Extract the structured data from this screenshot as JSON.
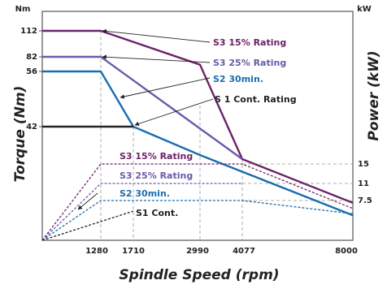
{
  "chart_data": {
    "type": "line",
    "x_label": "Spindle Speed (rpm)",
    "y_left_label": "Torque (Nm)",
    "y_right_label": "Power (kW)",
    "y_left_unit": "Nm",
    "y_right_unit": "kW",
    "x_ticks": [
      "1280",
      "1710",
      "2990",
      "4077",
      "8000"
    ],
    "y_left_ticks": [
      "112",
      "82",
      "56",
      "42"
    ],
    "y_right_ticks": [
      "15",
      "11",
      "7.5"
    ],
    "torque_series": [
      {
        "name": "S3 15% Rating",
        "color": "#6b2367",
        "points": [
          [
            0,
            112
          ],
          [
            1280,
            112
          ],
          [
            2990,
            68
          ],
          [
            4077,
            26
          ],
          [
            8000,
            12
          ]
        ]
      },
      {
        "name": "S3 25% Rating",
        "color": "#6a5aab",
        "points": [
          [
            0,
            82
          ],
          [
            1280,
            82
          ],
          [
            4077,
            26
          ]
        ]
      },
      {
        "name": "S2 30min.",
        "color": "#1a6cb0",
        "points": [
          [
            0,
            56
          ],
          [
            1280,
            56
          ],
          [
            1710,
            42
          ],
          [
            2990,
            28
          ],
          [
            8000,
            8
          ]
        ]
      },
      {
        "name": "S1 Cont. Rating",
        "color": "#222222",
        "points": [
          [
            0,
            42
          ],
          [
            1710,
            42
          ]
        ]
      }
    ],
    "power_series": [
      {
        "name": "S3 15% Rating",
        "color": "#6b2367",
        "points": [
          [
            0,
            0
          ],
          [
            1280,
            15
          ],
          [
            4077,
            15
          ],
          [
            8000,
            6
          ]
        ]
      },
      {
        "name": "S3 25% Rating",
        "color": "#6a5aab",
        "points": [
          [
            0,
            0
          ],
          [
            1280,
            11
          ],
          [
            4077,
            11
          ]
        ]
      },
      {
        "name": "S2 30min.",
        "color": "#1a6cb0",
        "points": [
          [
            0,
            0
          ],
          [
            1280,
            7.5
          ],
          [
            4077,
            7.5
          ],
          [
            8000,
            5
          ]
        ]
      },
      {
        "name": "S1 Cont.",
        "color": "#222222",
        "points": [
          [
            0,
            0
          ],
          [
            1710,
            5.5
          ]
        ]
      }
    ],
    "annotations": {
      "torque": [
        "S3 15% Rating",
        "S3 25% Rating",
        "S2 30min.",
        "S 1 Cont. Rating"
      ],
      "power": [
        "S3 15% Rating",
        "S3 25% Rating",
        "S2 30min.",
        "S1 Cont."
      ]
    },
    "gridlines": "dashed reference lines at breakpoints"
  }
}
